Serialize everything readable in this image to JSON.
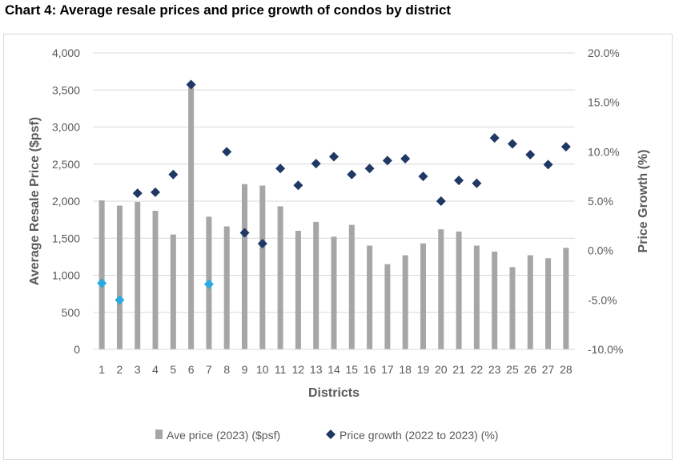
{
  "chart_data": {
    "type": "bar",
    "title": "Chart 4: Average resale prices and price growth of condos by district",
    "xlabel": "Districts",
    "ylabel": "Average Resale Price ($psf)",
    "y2label": "Price Growth (%)",
    "categories": [
      "1",
      "2",
      "3",
      "4",
      "5",
      "6",
      "7",
      "8",
      "9",
      "10",
      "11",
      "12",
      "13",
      "14",
      "15",
      "16",
      "17",
      "18",
      "19",
      "20",
      "21",
      "22",
      "23",
      "25",
      "26",
      "27",
      "28"
    ],
    "ylim": [
      0,
      4000
    ],
    "yticks": [
      "0",
      "500",
      "1,000",
      "1,500",
      "2,000",
      "2,500",
      "3,000",
      "3,500",
      "4,000"
    ],
    "y2lim": [
      -10,
      20
    ],
    "y2ticks": [
      "-10.0%",
      "-5.0%",
      "0.0%",
      "5.0%",
      "10.0%",
      "15.0%",
      "20.0%"
    ],
    "grid": true,
    "legend_position": "bottom",
    "series": [
      {
        "name": "Ave price (2023) ($psf)",
        "type": "bar",
        "axis": "left",
        "color": "#a6a6a6",
        "values": [
          2010,
          1940,
          1990,
          1870,
          1550,
          3570,
          1790,
          1660,
          2230,
          2210,
          1930,
          1600,
          1720,
          1520,
          1680,
          1400,
          1150,
          1270,
          1430,
          1620,
          1590,
          1400,
          1320,
          1110,
          1270,
          1230,
          1370
        ]
      },
      {
        "name": "Price growth (2022 to 2023) (%)",
        "type": "scatter",
        "axis": "right",
        "marker": "diamond",
        "color": "#1f3864",
        "negative_color": "#29abe2",
        "values": [
          -3.3,
          -5.0,
          5.8,
          5.9,
          7.7,
          16.8,
          -3.4,
          10.0,
          1.8,
          0.7,
          8.3,
          6.6,
          8.8,
          9.5,
          7.7,
          8.3,
          9.1,
          9.3,
          7.5,
          5.0,
          7.1,
          6.8,
          11.4,
          10.8,
          9.7,
          8.7,
          10.5
        ]
      }
    ]
  }
}
